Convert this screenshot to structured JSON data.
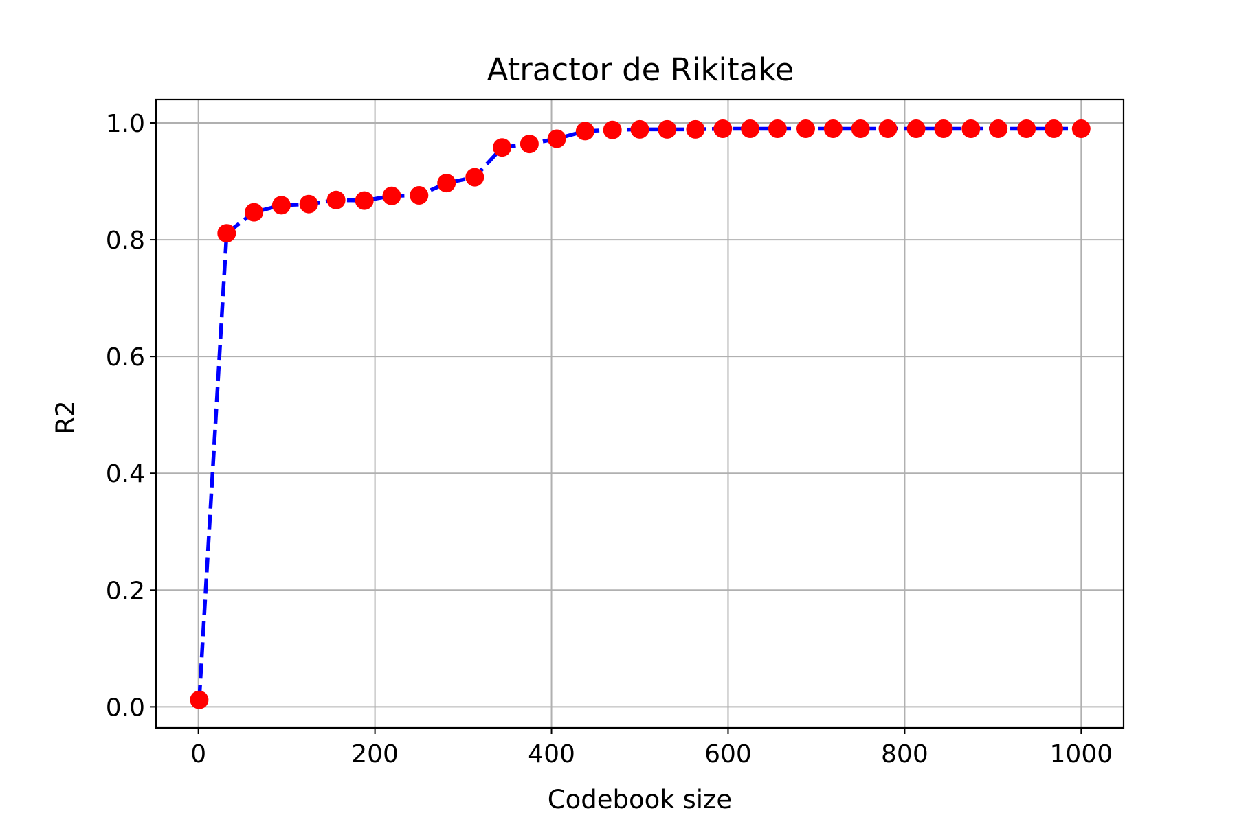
{
  "chart_data": {
    "type": "line",
    "title": "Atractor de Rikitake",
    "xlabel": "Codebook size",
    "ylabel": "R2",
    "xlim": [
      -48,
      1048
    ],
    "ylim": [
      -0.036,
      1.04
    ],
    "grid": true,
    "x_ticks": [
      0,
      200,
      400,
      600,
      800,
      1000
    ],
    "x_tick_labels": [
      "0",
      "200",
      "400",
      "600",
      "800",
      "1000"
    ],
    "y_ticks": [
      0.0,
      0.2,
      0.4,
      0.6,
      0.8,
      1.0
    ],
    "y_tick_labels": [
      "0.0",
      "0.2",
      "0.4",
      "0.6",
      "0.8",
      "1.0"
    ],
    "series": [
      {
        "line_color": "#0000ff",
        "line_style": "dashed",
        "marker_color": "#ff0000",
        "marker": "circle",
        "x": [
          1,
          32,
          63,
          94,
          125,
          156,
          188,
          219,
          250,
          281,
          313,
          344,
          375,
          406,
          438,
          469,
          500,
          531,
          563,
          594,
          625,
          656,
          688,
          719,
          750,
          781,
          813,
          844,
          875,
          906,
          938,
          969,
          1000
        ],
        "y": [
          0.012,
          0.811,
          0.847,
          0.859,
          0.861,
          0.868,
          0.867,
          0.875,
          0.876,
          0.897,
          0.907,
          0.958,
          0.964,
          0.973,
          0.986,
          0.988,
          0.989,
          0.989,
          0.989,
          0.99,
          0.99,
          0.99,
          0.99,
          0.99,
          0.99,
          0.99,
          0.99,
          0.99,
          0.99,
          0.99,
          0.99,
          0.99,
          0.99
        ]
      }
    ]
  }
}
